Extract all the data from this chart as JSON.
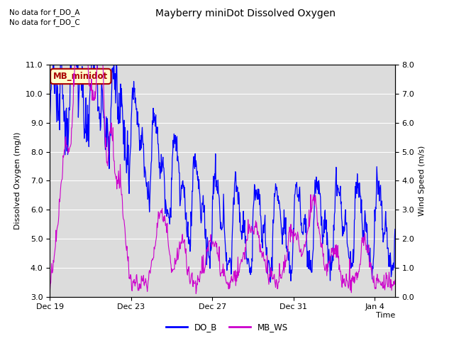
{
  "title": "Mayberry miniDot Dissolved Oxygen",
  "ylabel_left": "Dissolved Oxygen (mg/l)",
  "ylabel_right": "Wind Speed (m/s)",
  "xlabel": "Time",
  "legend_label1": "DO_B",
  "legend_label2": "MB_WS",
  "annotation1": "No data for f_DO_A",
  "annotation2": "No data for f_DO_C",
  "box_label": "MB_minidot",
  "ylim_left": [
    3.0,
    11.0
  ],
  "ylim_right": [
    0.0,
    8.0
  ],
  "do_color": "#0000ff",
  "ws_color": "#cc00cc",
  "bg_color": "#dcdcdc",
  "box_bg": "#ffffcc",
  "box_edge": "#aa0000",
  "box_text_color": "#aa0000",
  "xtick_labels": [
    "Dec 19",
    "Dec 23",
    "Dec 27",
    "Dec 31",
    "Jan 4"
  ],
  "xtick_positions": [
    0,
    4,
    8,
    12,
    16
  ],
  "n_days": 17
}
